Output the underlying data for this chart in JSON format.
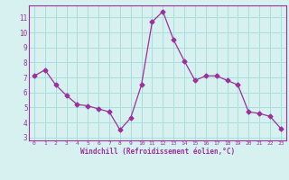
{
  "x": [
    0,
    1,
    2,
    3,
    4,
    5,
    6,
    7,
    8,
    9,
    10,
    11,
    12,
    13,
    14,
    15,
    16,
    17,
    18,
    19,
    20,
    21,
    22,
    23
  ],
  "y": [
    7.1,
    7.5,
    6.5,
    5.8,
    5.2,
    5.1,
    4.9,
    4.7,
    3.5,
    4.3,
    6.5,
    10.7,
    11.4,
    9.5,
    8.1,
    6.8,
    7.1,
    7.1,
    6.8,
    6.5,
    4.7,
    4.6,
    4.4,
    3.6
  ],
  "line_color": "#993399",
  "marker": "D",
  "marker_size": 2.5,
  "bg_color": "#d7f0f0",
  "grid_color": "#aadddd",
  "xlabel": "Windchill (Refroidissement éolien,°C)",
  "ylabel_ticks": [
    3,
    4,
    5,
    6,
    7,
    8,
    9,
    10,
    11
  ],
  "xlim": [
    -0.5,
    23.5
  ],
  "ylim": [
    2.8,
    11.8
  ],
  "tick_color": "#993399",
  "label_color": "#993399"
}
